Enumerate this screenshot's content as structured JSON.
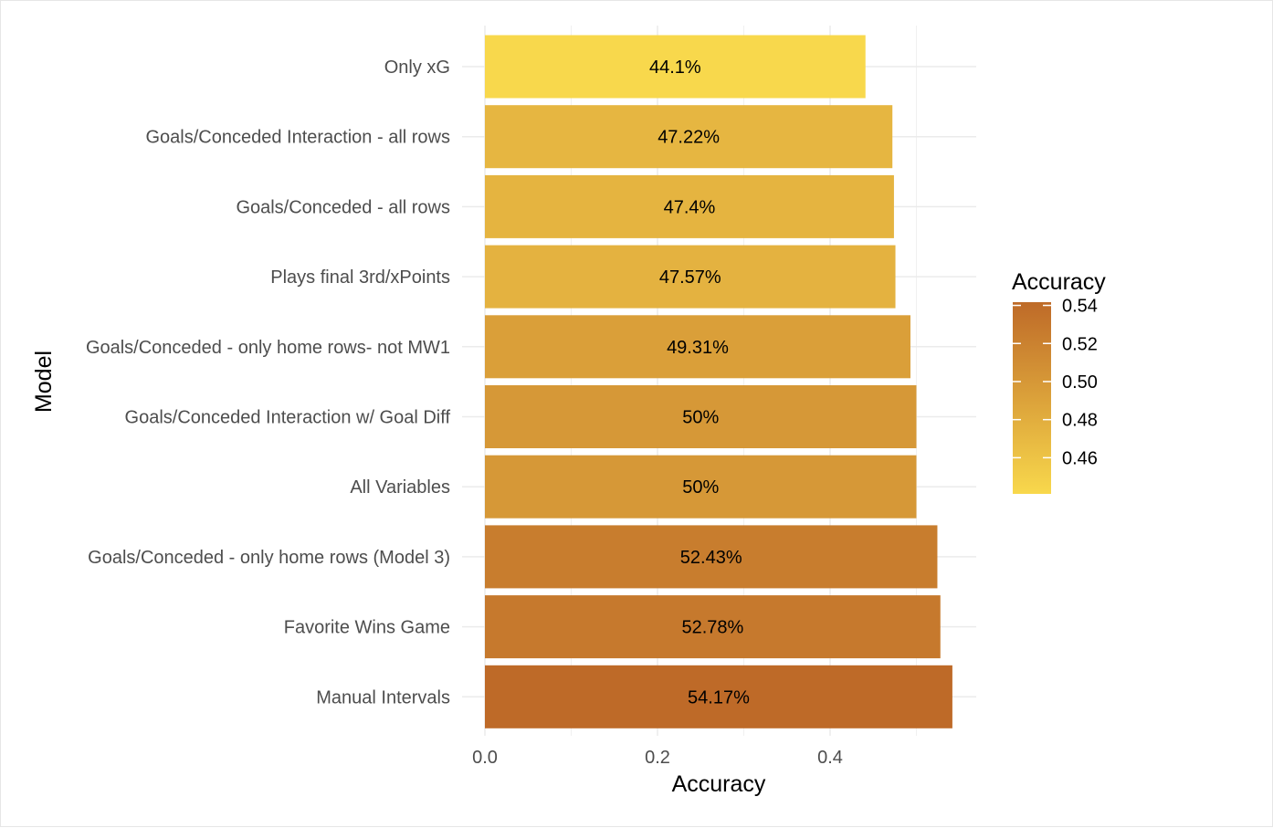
{
  "chart_data": {
    "type": "bar",
    "orientation": "horizontal",
    "xlabel": "Accuracy",
    "ylabel": "Model",
    "xlim": [
      0,
      0.57
    ],
    "x_ticks": [
      0.0,
      0.2,
      0.4
    ],
    "x_tick_labels": [
      "0.0",
      "0.2",
      "0.4"
    ],
    "grid": true,
    "categories": [
      "Only xG",
      "Goals/Conceded Interaction - all rows",
      "Goals/Conceded - all rows",
      "Plays final 3rd/xPoints",
      "Goals/Conceded - only home rows- not MW1",
      "Goals/Conceded Interaction w/ Goal Diff",
      "All Variables",
      "Goals/Conceded - only home rows (Model 3)",
      "Favorite Wins Game",
      "Manual Intervals "
    ],
    "values": [
      0.441,
      0.4722,
      0.474,
      0.4757,
      0.4931,
      0.5,
      0.5,
      0.5243,
      0.5278,
      0.5417
    ],
    "data_labels": [
      "44.1%",
      "47.22%",
      "47.4%",
      "47.57%",
      "49.31%",
      "50%",
      "50%",
      "52.43%",
      "52.78%",
      "54.17%"
    ],
    "legend": {
      "title": "Accuracy",
      "placement": "right",
      "type": "colorbar",
      "range": [
        0.441,
        0.5417
      ],
      "ticks": [
        0.54,
        0.52,
        0.5,
        0.48,
        0.46
      ],
      "tick_labels": [
        "0.54",
        "0.52",
        "0.50",
        "0.48",
        "0.46"
      ],
      "color_low": "#f8d84c",
      "color_high": "#be6a28"
    }
  }
}
